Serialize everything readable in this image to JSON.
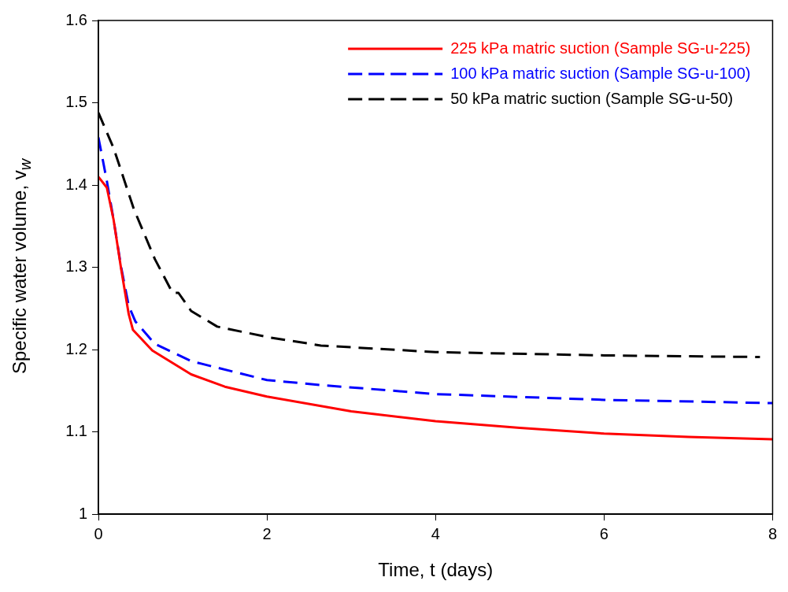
{
  "chart_data": {
    "type": "line",
    "xlabel": "Time, t (days)",
    "ylabel": "Specific water volume, v$_{w}$",
    "xlim": [
      0,
      8
    ],
    "ylim": [
      1.0,
      1.6
    ],
    "xticks": [
      0,
      2,
      4,
      6,
      8
    ],
    "yticks": [
      1.0,
      1.1,
      1.2,
      1.3,
      1.4,
      1.5,
      1.6
    ],
    "grid": false,
    "legend": "top right",
    "marker": "none",
    "series": [
      {
        "name": "225 kPa matric suction (Sample SG-u-225)",
        "color": "#ff0000",
        "line_style": "solid",
        "x": [
          0,
          0.1,
          0.18,
          0.27,
          0.36,
          0.41,
          0.64,
          1.1,
          1.5,
          2,
          3,
          4,
          5,
          6,
          7,
          8
        ],
        "values": [
          1.41,
          1.397,
          1.358,
          1.298,
          1.243,
          1.224,
          1.199,
          1.17,
          1.155,
          1.143,
          1.125,
          1.113,
          1.105,
          1.098,
          1.094,
          1.091
        ]
      },
      {
        "name": "100 kPa matric suction (Sample SG-u-100)",
        "color": "#0000ff",
        "line_style": "dashed",
        "x": [
          0,
          0.055,
          0.1,
          0.18,
          0.27,
          0.36,
          0.44,
          0.67,
          1.1,
          2,
          2.64,
          4,
          6,
          8
        ],
        "values": [
          1.458,
          1.429,
          1.405,
          1.358,
          1.3,
          1.253,
          1.234,
          1.207,
          1.186,
          1.163,
          1.157,
          1.146,
          1.139,
          1.135
        ]
      },
      {
        "name": "50 kPa matric suction (Sample SG-u-50)",
        "color": "#000000",
        "line_style": "dashed",
        "x": [
          0,
          0.18,
          0.42,
          0.67,
          0.88,
          0.95,
          1.1,
          1.41,
          2.02,
          2.64,
          4,
          6,
          7.85
        ],
        "values": [
          1.488,
          1.445,
          1.371,
          1.31,
          1.269,
          1.269,
          1.247,
          1.228,
          1.215,
          1.205,
          1.197,
          1.193,
          1.191
        ]
      }
    ]
  }
}
